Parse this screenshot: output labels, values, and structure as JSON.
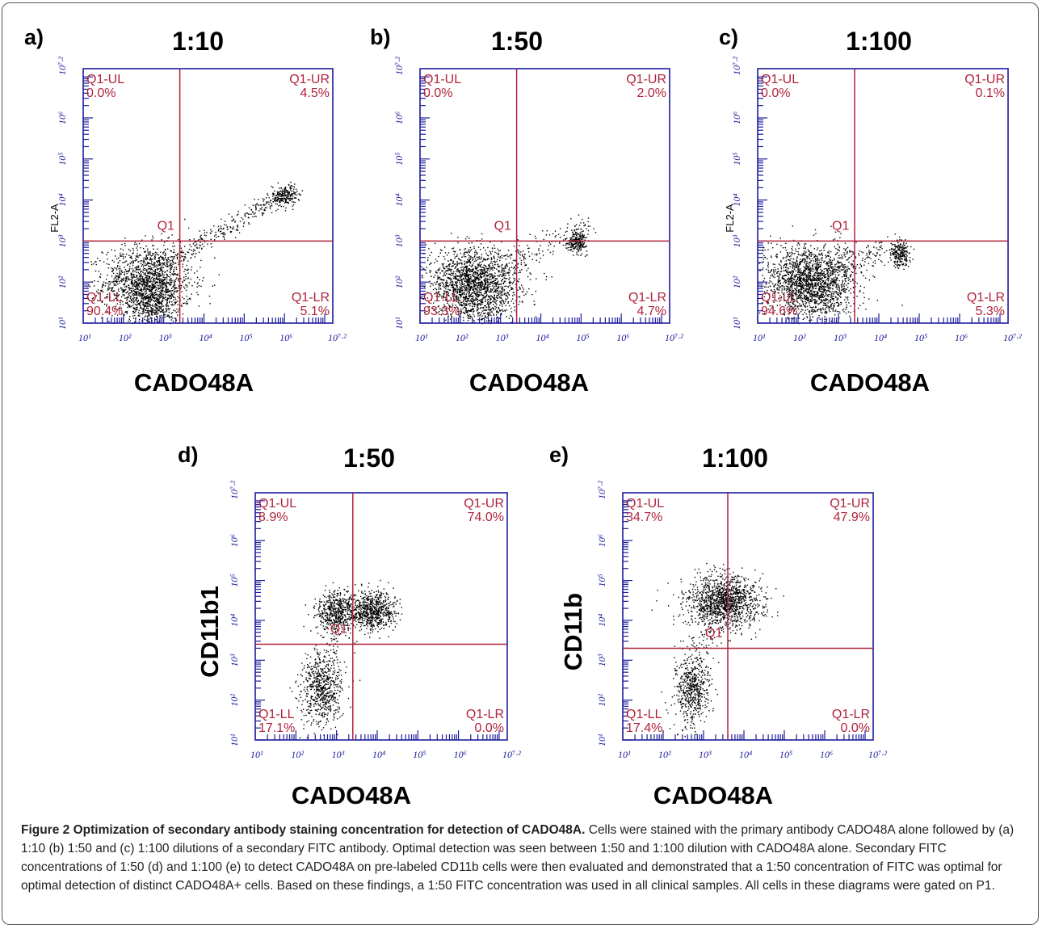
{
  "chart_data": [
    {
      "type": "scatter",
      "panel": "a)",
      "title": "1:10",
      "xlabel": "CADO48A",
      "ylabel": "FL2-A",
      "x_ticks": [
        "10¹",
        "10²",
        "10³",
        "10⁴",
        "10⁵",
        "10⁶",
        "10⁷·²"
      ],
      "y_ticks": [
        "10¹",
        "10²",
        "10³",
        "10⁴",
        "10⁵",
        "10⁶",
        "10⁷·²"
      ],
      "xlim": [
        1,
        7.2
      ],
      "ylim": [
        1,
        7.2
      ],
      "gate_x": 3.4,
      "gate_y": 3.0,
      "gate_label": "Q1",
      "quadrants": [
        {
          "name": "Q1-UL",
          "value": "0.0%"
        },
        {
          "name": "Q1-UR",
          "value": "4.5%"
        },
        {
          "name": "Q1-LL",
          "value": "90.4%"
        },
        {
          "name": "Q1-LR",
          "value": "5.1%"
        }
      ],
      "populations": [
        {
          "cx": 2.6,
          "cy": 2.0,
          "sx": 0.55,
          "sy": 0.45,
          "n": 1500
        },
        {
          "cx": 2.7,
          "cy": 1.5,
          "sx": 0.3,
          "sy": 0.3,
          "n": 300
        },
        {
          "cx": 6.0,
          "cy": 4.1,
          "sx": 0.15,
          "sy": 0.12,
          "n": 200
        }
      ],
      "streaks": [
        {
          "x0": 3.0,
          "y0": 2.5,
          "x1": 6.2,
          "y1": 4.3,
          "n": 300,
          "spread": 0.12
        }
      ]
    },
    {
      "type": "scatter",
      "panel": "b)",
      "title": "1:50",
      "xlabel": "CADO48A",
      "ylabel": "",
      "x_ticks": [
        "10¹",
        "10²",
        "10³",
        "10⁴",
        "10⁵",
        "10⁶",
        "10⁷·²"
      ],
      "y_ticks": [
        "10¹",
        "10²",
        "10³",
        "10⁴",
        "10⁵",
        "10⁶",
        "10⁷·²"
      ],
      "xlim": [
        1,
        7.2
      ],
      "ylim": [
        1,
        7.2
      ],
      "gate_x": 3.4,
      "gate_y": 3.0,
      "gate_label": "Q1",
      "quadrants": [
        {
          "name": "Q1-UL",
          "value": "0.0%"
        },
        {
          "name": "Q1-UR",
          "value": "2.0%"
        },
        {
          "name": "Q1-LL",
          "value": "93.3%"
        },
        {
          "name": "Q1-LR",
          "value": "4.7%"
        }
      ],
      "populations": [
        {
          "cx": 2.3,
          "cy": 2.0,
          "sx": 0.6,
          "sy": 0.4,
          "n": 1600
        },
        {
          "cx": 2.5,
          "cy": 1.5,
          "sx": 0.4,
          "sy": 0.3,
          "n": 300
        },
        {
          "cx": 4.9,
          "cy": 3.0,
          "sx": 0.12,
          "sy": 0.12,
          "n": 220
        }
      ],
      "streaks": [
        {
          "x0": 3.0,
          "y0": 2.4,
          "x1": 5.2,
          "y1": 3.4,
          "n": 150,
          "spread": 0.15
        }
      ]
    },
    {
      "type": "scatter",
      "panel": "c)",
      "title": "1:100",
      "xlabel": "CADO48A",
      "ylabel": "FL2-A",
      "x_ticks": [
        "10¹",
        "10²",
        "10³",
        "10⁴",
        "10⁵",
        "10⁶",
        "10⁷·²"
      ],
      "y_ticks": [
        "10¹",
        "10²",
        "10³",
        "10⁴",
        "10⁵",
        "10⁶",
        "10⁷·²"
      ],
      "xlim": [
        1,
        7.2
      ],
      "ylim": [
        1,
        7.2
      ],
      "gate_x": 3.4,
      "gate_y": 3.0,
      "gate_label": "Q1",
      "quadrants": [
        {
          "name": "Q1-UL",
          "value": "0.0%"
        },
        {
          "name": "Q1-UR",
          "value": "0.1%"
        },
        {
          "name": "Q1-LL",
          "value": "94.6%"
        },
        {
          "name": "Q1-LR",
          "value": "5.3%"
        }
      ],
      "populations": [
        {
          "cx": 2.3,
          "cy": 2.1,
          "sx": 0.6,
          "sy": 0.4,
          "n": 1600
        },
        {
          "cx": 2.4,
          "cy": 1.6,
          "sx": 0.4,
          "sy": 0.3,
          "n": 300
        },
        {
          "cx": 4.5,
          "cy": 2.7,
          "sx": 0.12,
          "sy": 0.17,
          "n": 220
        }
      ],
      "streaks": [
        {
          "x0": 3.0,
          "y0": 2.5,
          "x1": 4.2,
          "y1": 2.8,
          "n": 80,
          "spread": 0.15
        }
      ]
    },
    {
      "type": "scatter",
      "panel": "d)",
      "title": "1:50",
      "xlabel": "CADO48A",
      "ylabel": "CD11b1",
      "x_ticks": [
        "10¹",
        "10²",
        "10³",
        "10⁴",
        "10⁵",
        "10⁶",
        "10⁷·²"
      ],
      "y_ticks": [
        "10¹",
        "10²",
        "10³",
        "10⁴",
        "10⁵",
        "10⁶",
        "10⁷·²"
      ],
      "xlim": [
        1,
        7.2
      ],
      "ylim": [
        1,
        7.2
      ],
      "gate_x": 3.4,
      "gate_y": 3.4,
      "gate_label": "Q1",
      "quadrants": [
        {
          "name": "Q1-UL",
          "value": "8.9%"
        },
        {
          "name": "Q1-UR",
          "value": "74.0%"
        },
        {
          "name": "Q1-LL",
          "value": "17.1%"
        },
        {
          "name": "Q1-LR",
          "value": "0.0%"
        }
      ],
      "populations": [
        {
          "cx": 3.0,
          "cy": 4.25,
          "sx": 0.25,
          "sy": 0.25,
          "n": 500
        },
        {
          "cx": 3.85,
          "cy": 4.25,
          "sx": 0.3,
          "sy": 0.25,
          "n": 700
        },
        {
          "cx": 2.6,
          "cy": 2.3,
          "sx": 0.25,
          "sy": 0.45,
          "n": 600
        }
      ],
      "streaks": [
        {
          "x0": 2.6,
          "y0": 2.8,
          "x1": 3.0,
          "y1": 3.9,
          "n": 60,
          "spread": 0.2
        }
      ]
    },
    {
      "type": "scatter",
      "panel": "e)",
      "title": "1:100",
      "xlabel": "CADO48A",
      "ylabel": "CD11b",
      "x_ticks": [
        "10¹",
        "10²",
        "10³",
        "10⁴",
        "10⁵",
        "10⁶",
        "10⁷·²"
      ],
      "y_ticks": [
        "10¹",
        "10²",
        "10³",
        "10⁴",
        "10⁵",
        "10⁶",
        "10⁷·²"
      ],
      "xlim": [
        1,
        7.2
      ],
      "ylim": [
        1,
        7.2
      ],
      "gate_x": 3.6,
      "gate_y": 3.3,
      "gate_label": "Q1",
      "quadrants": [
        {
          "name": "Q1-UL",
          "value": "34.7%"
        },
        {
          "name": "Q1-UR",
          "value": "47.9%"
        },
        {
          "name": "Q1-LL",
          "value": "17.4%"
        },
        {
          "name": "Q1-LR",
          "value": "0.0%"
        }
      ],
      "populations": [
        {
          "cx": 3.5,
          "cy": 4.5,
          "sx": 0.45,
          "sy": 0.32,
          "n": 1300
        },
        {
          "cx": 2.7,
          "cy": 2.3,
          "sx": 0.22,
          "sy": 0.45,
          "n": 550
        }
      ],
      "streaks": [
        {
          "x0": 2.7,
          "y0": 2.9,
          "x1": 3.2,
          "y1": 4.0,
          "n": 60,
          "spread": 0.2
        }
      ]
    }
  ],
  "caption": {
    "title": "Figure 2 Optimization of secondary antibody staining concentration for detection of CADO48A.",
    "text": " Cells were stained with the primary antibody CADO48A alone followed by (a) 1:10 (b) 1:50 and (c) 1:100 dilutions of a secondary FITC antibody. Optimal detection was seen between 1:50 and 1:100 dilution with CADO48A alone. Secondary FITC concentrations of 1:50 (d) and 1:100 (e) to detect CADO48A on pre-labeled CD11b cells were then evaluated and demonstrated that a 1:50 concentration of FITC was optimal for optimal detection of distinct CADO48A+ cells. Based on these findings, a 1:50 FITC concentration was used in all clinical samples. All cells in these diagrams were gated on P1."
  }
}
